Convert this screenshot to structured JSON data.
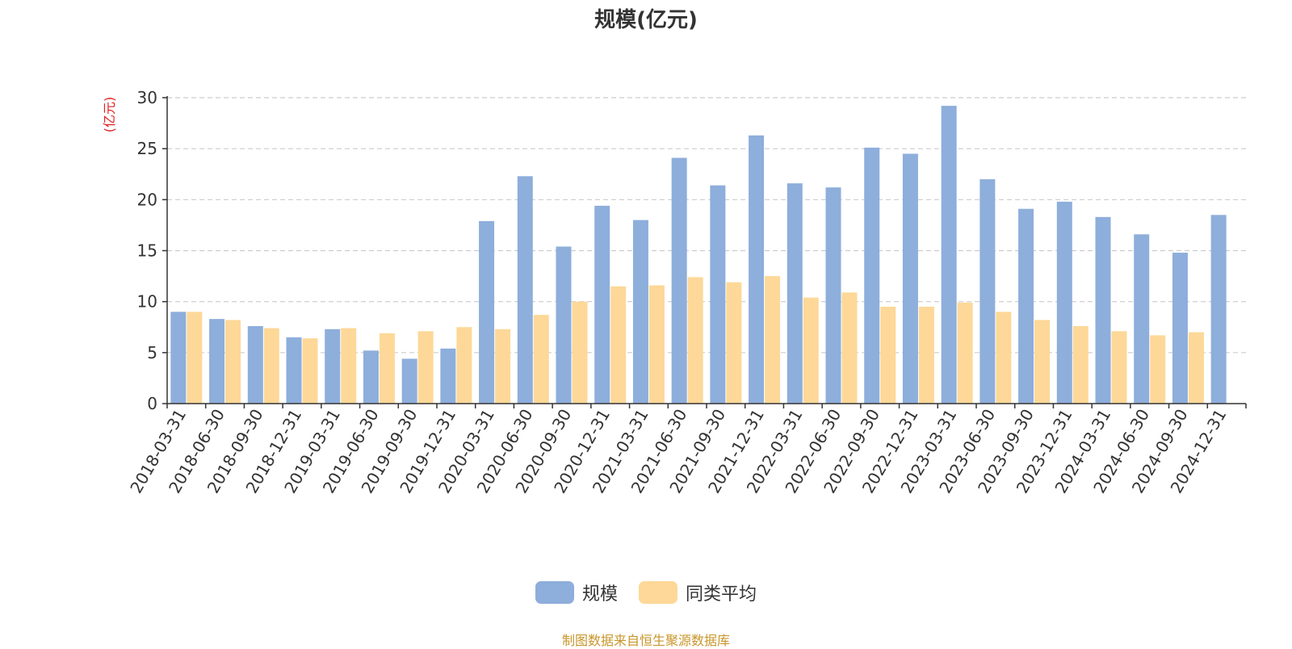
{
  "chart_data": {
    "type": "bar",
    "title": "规模(亿元)",
    "ylabel": "(亿元)",
    "xlabel": "",
    "ylim": [
      0,
      30
    ],
    "yticks": [
      0,
      5,
      10,
      15,
      20,
      25,
      30
    ],
    "grid": true,
    "legend_position": "bottom",
    "categories": [
      "2018-03-31",
      "2018-06-30",
      "2018-09-30",
      "2018-12-31",
      "2019-03-31",
      "2019-06-30",
      "2019-09-30",
      "2019-12-31",
      "2020-03-31",
      "2020-06-30",
      "2020-09-30",
      "2020-12-31",
      "2021-03-31",
      "2021-06-30",
      "2021-09-30",
      "2021-12-31",
      "2022-03-31",
      "2022-06-30",
      "2022-09-30",
      "2022-12-31",
      "2023-03-31",
      "2023-06-30",
      "2023-09-30",
      "2023-12-31",
      "2024-03-31",
      "2024-06-30",
      "2024-09-30",
      "2024-12-31"
    ],
    "series": [
      {
        "name": "规模",
        "color": "#8eaedb",
        "values": [
          9.0,
          8.3,
          7.6,
          6.5,
          7.3,
          5.2,
          4.4,
          5.4,
          17.9,
          22.3,
          15.4,
          19.4,
          18.0,
          24.1,
          21.4,
          26.3,
          21.6,
          21.2,
          25.1,
          24.5,
          29.2,
          22.0,
          19.1,
          19.8,
          18.3,
          16.6,
          14.8,
          18.5
        ]
      },
      {
        "name": "同类平均",
        "color": "#fdd898",
        "values": [
          9.0,
          8.2,
          7.4,
          6.4,
          7.4,
          6.9,
          7.1,
          7.5,
          7.3,
          8.7,
          10.0,
          11.5,
          11.6,
          12.4,
          11.9,
          12.5,
          10.4,
          10.9,
          9.5,
          9.5,
          9.9,
          9.0,
          8.2,
          7.6,
          7.1,
          6.7,
          7.0,
          null
        ]
      }
    ]
  },
  "source": "制图数据来自恒生聚源数据库"
}
